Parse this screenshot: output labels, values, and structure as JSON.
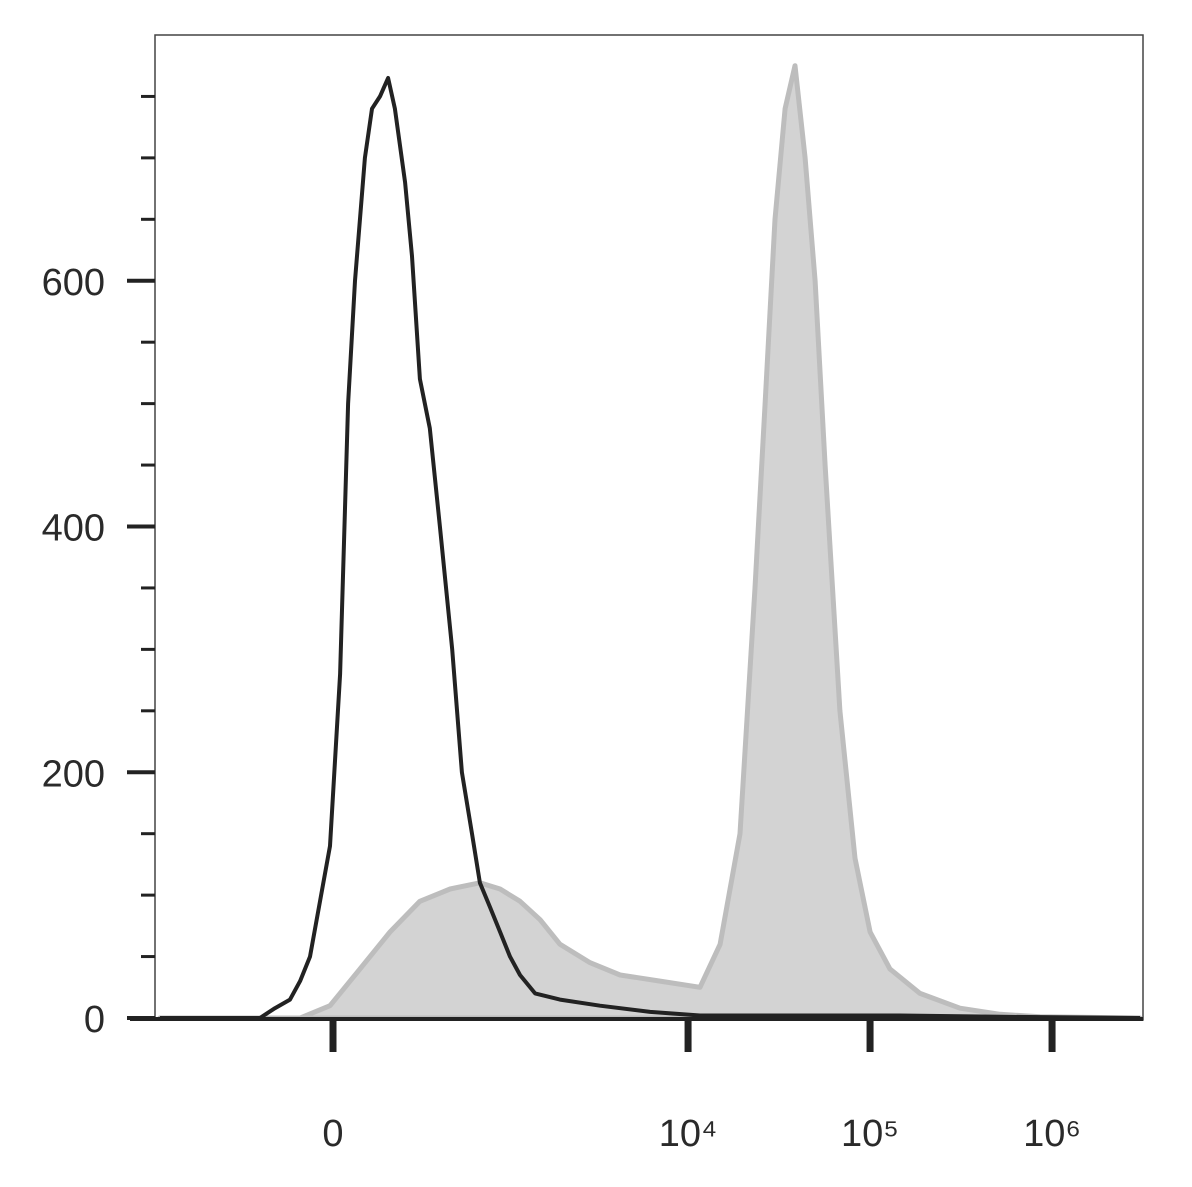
{
  "chart_data": {
    "type": "histogram-overlay",
    "xscale": "arcsinh",
    "xscale_cofactor": 224,
    "xlim": [
      -1053,
      3160000
    ],
    "xticks": [
      0,
      {
        "value": 10000,
        "label": "10⁴"
      },
      {
        "value": 100000,
        "label": "10⁵"
      },
      {
        "value": 1000000,
        "label": "10⁶"
      }
    ],
    "ylim": [
      0,
      800
    ],
    "yticks": [
      0,
      200,
      400,
      600
    ],
    "yminorticks": [
      50,
      100,
      150,
      250,
      300,
      350,
      450,
      500,
      550,
      650,
      700,
      750
    ],
    "series": [
      {
        "color": "#bdbdbd",
        "fill": "#d3d3d3",
        "filled": true,
        "x": [
          -988,
          -96,
          -8.5,
          78,
          176,
          299,
          467,
          701,
          914,
          1183,
          1530,
          1973,
          2890,
          4230,
          7010,
          11626,
          14990,
          19290,
          23340,
          26500,
          30060,
          34140,
          38710,
          43950,
          49880,
          56630,
          68320,
          82660,
          100000,
          128600,
          188000,
          312000,
          518000,
          859000,
          3047000
        ],
        "values": [
          0,
          0,
          10,
          40,
          70,
          95,
          105,
          110,
          105,
          95,
          80,
          60,
          45,
          35,
          30,
          25,
          60,
          150,
          350,
          500,
          650,
          740,
          775,
          700,
          600,
          450,
          250,
          130,
          70,
          40,
          20,
          8,
          3,
          1,
          0
        ]
      },
      {
        "color": "#222222",
        "filled": false,
        "x": [
          -988,
          -238,
          -180,
          -128,
          -96,
          -66,
          -37,
          -8.5,
          20,
          43,
          63,
          93,
          115,
          141,
          169,
          194,
          234,
          263,
          299,
          348,
          404,
          481,
          550,
          631,
          701,
          802,
          914,
          1039,
          1183,
          1436,
          1973,
          3279,
          6182,
          11626,
          41200,
          146000,
          518000,
          3047000
        ],
        "values": [
          0,
          0,
          8,
          15,
          30,
          50,
          95,
          140,
          280,
          500,
          600,
          700,
          740,
          750,
          765,
          740,
          680,
          620,
          520,
          480,
          400,
          300,
          200,
          150,
          110,
          90,
          70,
          50,
          35,
          20,
          15,
          10,
          5,
          2,
          2,
          2,
          1,
          0
        ]
      }
    ]
  }
}
